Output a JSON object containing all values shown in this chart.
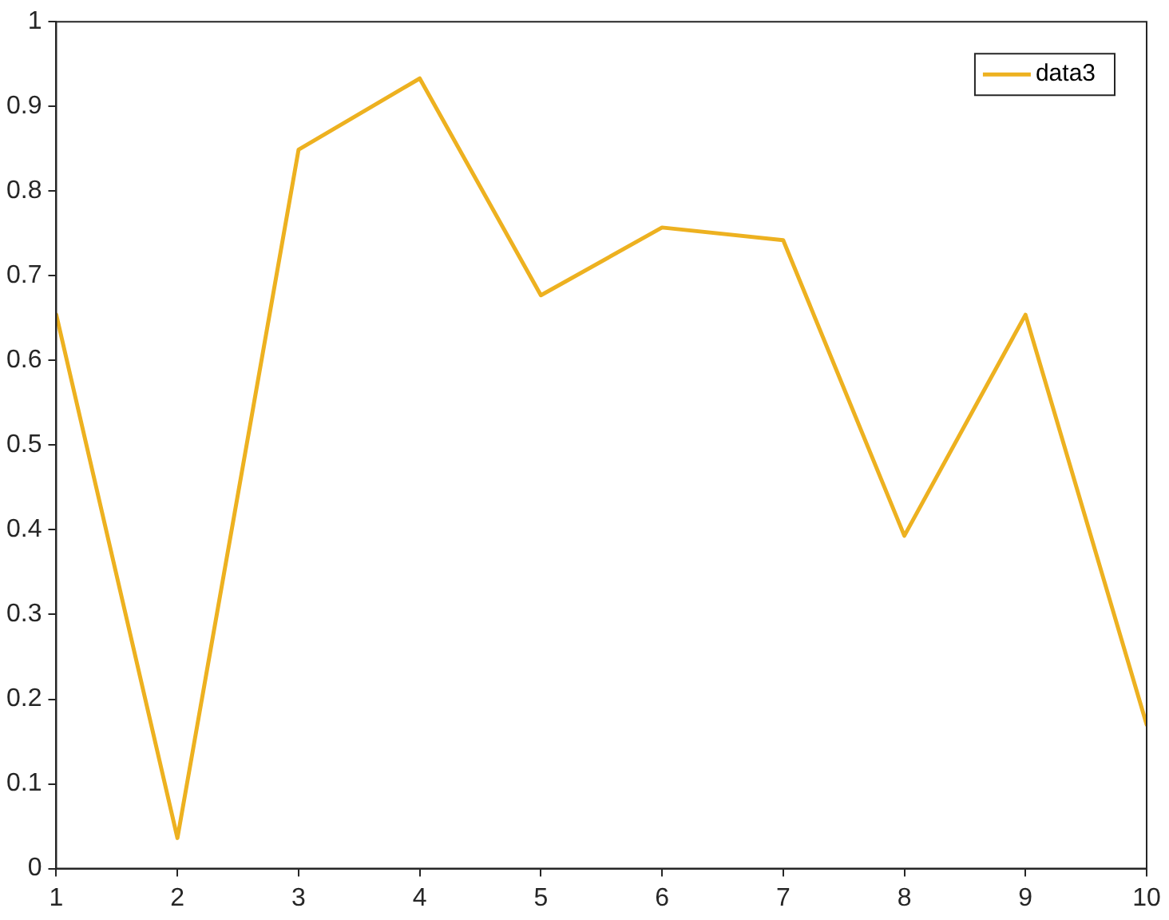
{
  "chart_data": {
    "type": "line",
    "x": [
      1,
      2,
      3,
      4,
      5,
      6,
      7,
      8,
      9,
      10
    ],
    "series": [
      {
        "name": "data3",
        "color": "#edb120",
        "values": [
          0.654,
          0.036,
          0.849,
          0.933,
          0.677,
          0.757,
          0.742,
          0.393,
          0.654,
          0.17
        ]
      }
    ],
    "xlim": [
      1,
      10
    ],
    "xticks": [
      1,
      2,
      3,
      4,
      5,
      6,
      7,
      8,
      9,
      10
    ],
    "ylim": [
      0,
      1
    ],
    "yticks": [
      0,
      0.1,
      0.2,
      0.3,
      0.4,
      0.5,
      0.6,
      0.7,
      0.8,
      0.9,
      1
    ],
    "grid": false,
    "legend": "top right",
    "marker": "none",
    "line_style": "solid"
  }
}
